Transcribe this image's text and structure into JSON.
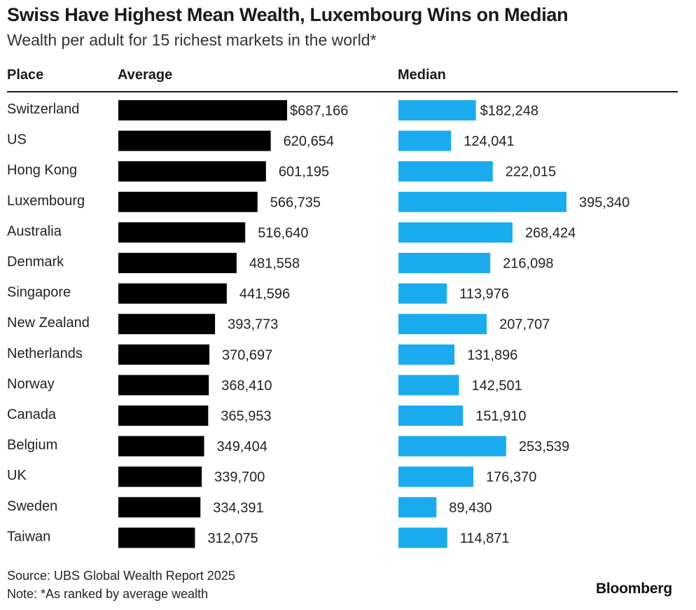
{
  "title": "Swiss Have Highest Mean Wealth, Luxembourg Wins on Median",
  "subtitle": "Wealth per adult for 15 richest markets in the world*",
  "headers": {
    "place": "Place",
    "average": "Average",
    "median": "Median"
  },
  "footer": {
    "source": "Source: UBS Global Wealth Report 2025",
    "note": "Note: *As ranked by average wealth",
    "logo": "Bloomberg"
  },
  "colors": {
    "average": "#000000",
    "median": "#1aabef"
  },
  "chart_data": {
    "type": "bar",
    "orientation": "horizontal",
    "categories": [
      "Switzerland",
      "US",
      "Hong Kong",
      "Luxembourg",
      "Australia",
      "Denmark",
      "Singapore",
      "New Zealand",
      "Netherlands",
      "Norway",
      "Canada",
      "Belgium",
      "UK",
      "Sweden",
      "Taiwan"
    ],
    "series": [
      {
        "name": "Average",
        "values": [
          687166,
          620654,
          601195,
          566735,
          516640,
          481558,
          441596,
          393773,
          370697,
          368410,
          365953,
          349404,
          339700,
          334391,
          312075
        ],
        "labels": [
          "$687,166",
          "620,654",
          "601,195",
          "566,735",
          "516,640",
          "481,558",
          "441,596",
          "393,773",
          "370,697",
          "368,410",
          "365,953",
          "349,404",
          "339,700",
          "334,391",
          "312,075"
        ]
      },
      {
        "name": "Median",
        "values": [
          182248,
          124041,
          222015,
          395340,
          268424,
          216098,
          113976,
          207707,
          131896,
          142501,
          151910,
          253539,
          176370,
          89430,
          114871
        ],
        "labels": [
          "$182,248",
          "124,041",
          "222,015",
          "395,340",
          "268,424",
          "216,098",
          "113,976",
          "207,707",
          "131,896",
          "142,501",
          "151,910",
          "253,539",
          "176,370",
          "89,430",
          "114,871"
        ]
      }
    ]
  }
}
